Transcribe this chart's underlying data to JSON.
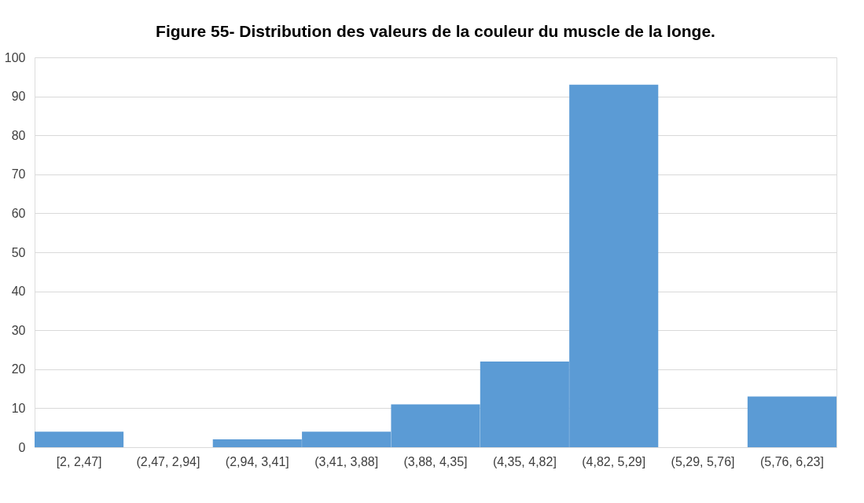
{
  "chart_data": {
    "type": "bar",
    "title": "Figure 55- Distribution des valeurs de la couleur du muscle de la longe.",
    "categories": [
      "[2, 2,47]",
      "(2,47, 2,94]",
      "(2,94, 3,41]",
      "(3,41, 3,88]",
      "(3,88, 4,35]",
      "(4,35, 4,82]",
      "(4,82, 5,29]",
      "(5,29, 5,76]",
      "(5,76, 6,23]"
    ],
    "values": [
      4,
      0,
      2,
      4,
      11,
      22,
      93,
      0,
      13
    ],
    "color": "#5b9bd5",
    "ylim": [
      0,
      100
    ],
    "yticks": [
      0,
      10,
      20,
      30,
      40,
      50,
      60,
      70,
      80,
      90,
      100
    ],
    "grid": "y"
  }
}
